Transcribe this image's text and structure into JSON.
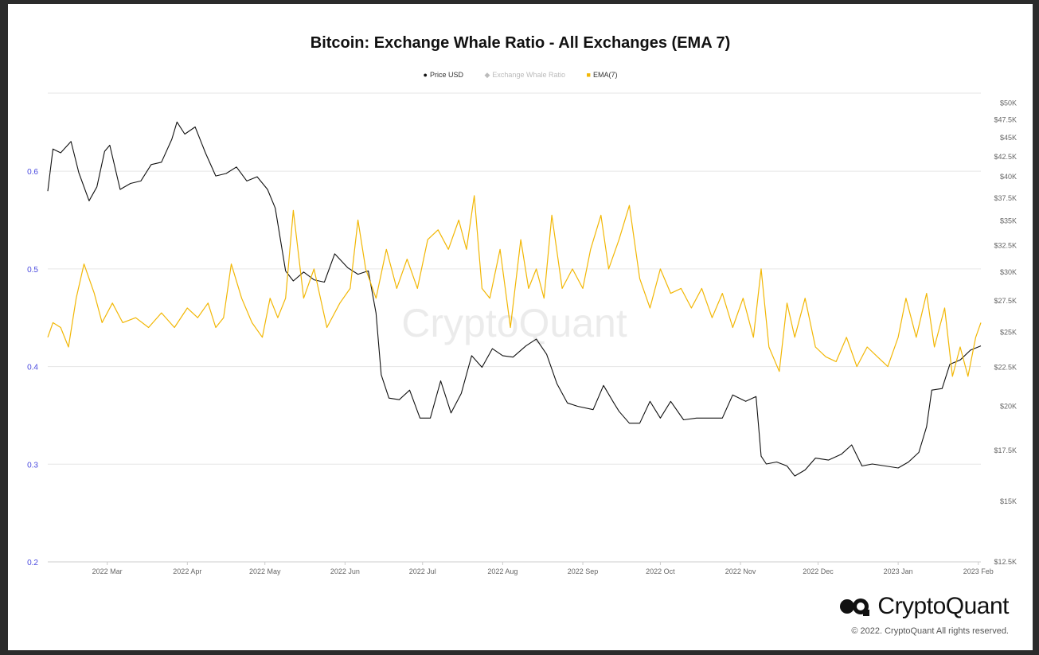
{
  "chart_data": {
    "type": "line",
    "title": "Bitcoin: Exchange Whale Ratio - All Exchanges (EMA 7)",
    "legend": [
      {
        "name": "Price USD",
        "color": "#111111"
      },
      {
        "name": "Exchange Whale Ratio",
        "color": "#bbbbbb"
      },
      {
        "name": "EMA(7)",
        "color": "#f2b705"
      }
    ],
    "x_ticks": [
      "2022 Mar",
      "2022 Apr",
      "2022 May",
      "2022 Jun",
      "2022 Jul",
      "2022 Aug",
      "2022 Sep",
      "2022 Oct",
      "2022 Nov",
      "2022 Dec",
      "2023 Jan",
      "2023 Feb"
    ],
    "x_range": [
      "2022-02-06",
      "2023-02-02"
    ],
    "y_left": {
      "range": [
        0.2,
        0.68
      ],
      "ticks": [
        "0.2",
        "0.3",
        "0.4",
        "0.5",
        "0.6"
      ],
      "tick_values": [
        0.2,
        0.3,
        0.4,
        0.5,
        0.6
      ]
    },
    "y_right": {
      "scale": "log",
      "range": [
        12500,
        51500
      ],
      "ticks": [
        "$12.5K",
        "$15K",
        "$17.5K",
        "$20K",
        "$22.5K",
        "$25K",
        "$27.5K",
        "$30K",
        "$32.5K",
        "$35K",
        "$37.5K",
        "$40K",
        "$42.5K",
        "$45K",
        "$47.5K",
        "$50K"
      ],
      "tick_values": [
        12500,
        15000,
        17500,
        20000,
        22500,
        25000,
        27500,
        30000,
        32500,
        35000,
        37500,
        40000,
        42500,
        45000,
        47500,
        50000
      ]
    },
    "series": [
      {
        "name": "Price USD",
        "axis": "right",
        "color": "#111111",
        "dates": [
          "2022-02-06",
          "2022-02-08",
          "2022-02-11",
          "2022-02-15",
          "2022-02-18",
          "2022-02-22",
          "2022-02-25",
          "2022-02-28",
          "2022-03-02",
          "2022-03-06",
          "2022-03-10",
          "2022-03-14",
          "2022-03-18",
          "2022-03-22",
          "2022-03-26",
          "2022-03-28",
          "2022-03-31",
          "2022-04-04",
          "2022-04-08",
          "2022-04-12",
          "2022-04-16",
          "2022-04-20",
          "2022-04-24",
          "2022-04-28",
          "2022-05-02",
          "2022-05-05",
          "2022-05-09",
          "2022-05-12",
          "2022-05-16",
          "2022-05-20",
          "2022-05-24",
          "2022-05-28",
          "2022-06-02",
          "2022-06-06",
          "2022-06-10",
          "2022-06-13",
          "2022-06-15",
          "2022-06-18",
          "2022-06-22",
          "2022-06-26",
          "2022-06-30",
          "2022-07-04",
          "2022-07-08",
          "2022-07-12",
          "2022-07-16",
          "2022-07-20",
          "2022-07-24",
          "2022-07-28",
          "2022-08-01",
          "2022-08-05",
          "2022-08-10",
          "2022-08-14",
          "2022-08-18",
          "2022-08-22",
          "2022-08-26",
          "2022-08-30",
          "2022-09-05",
          "2022-09-09",
          "2022-09-13",
          "2022-09-15",
          "2022-09-19",
          "2022-09-23",
          "2022-09-27",
          "2022-10-01",
          "2022-10-05",
          "2022-10-10",
          "2022-10-15",
          "2022-10-20",
          "2022-10-25",
          "2022-10-29",
          "2022-11-03",
          "2022-11-07",
          "2022-11-09",
          "2022-11-11",
          "2022-11-15",
          "2022-11-19",
          "2022-11-22",
          "2022-11-26",
          "2022-11-30",
          "2022-12-05",
          "2022-12-10",
          "2022-12-14",
          "2022-12-18",
          "2022-12-22",
          "2022-12-27",
          "2023-01-01",
          "2023-01-05",
          "2023-01-09",
          "2023-01-12",
          "2023-01-14",
          "2023-01-18",
          "2023-01-21",
          "2023-01-25",
          "2023-01-29",
          "2023-02-02"
        ],
        "values": [
          38300,
          43500,
          43000,
          44500,
          40500,
          37200,
          38800,
          43200,
          44000,
          38500,
          39200,
          39500,
          41500,
          41800,
          44800,
          47200,
          45500,
          46500,
          43000,
          40100,
          40400,
          41200,
          39500,
          40000,
          38500,
          36400,
          30100,
          29200,
          30000,
          29300,
          29100,
          31700,
          30400,
          29800,
          30100,
          26500,
          22000,
          20500,
          20400,
          21000,
          19300,
          19300,
          21600,
          19600,
          20800,
          23300,
          22500,
          23800,
          23300,
          23200,
          24000,
          24500,
          23400,
          21400,
          20200,
          20000,
          19800,
          21300,
          20200,
          19700,
          19000,
          19000,
          20300,
          19300,
          20300,
          19200,
          19300,
          19300,
          19300,
          20700,
          20300,
          20600,
          17200,
          16800,
          16900,
          16700,
          16200,
          16500,
          17100,
          17000,
          17300,
          17800,
          16700,
          16800,
          16700,
          16600,
          16900,
          17400,
          18800,
          21000,
          21100,
          22700,
          23000,
          23700,
          24000
        ]
      },
      {
        "name": "EMA(7)",
        "axis": "left",
        "color": "#f2b705",
        "dates": [
          "2022-02-06",
          "2022-02-08",
          "2022-02-11",
          "2022-02-14",
          "2022-02-17",
          "2022-02-20",
          "2022-02-24",
          "2022-02-27",
          "2022-03-03",
          "2022-03-07",
          "2022-03-12",
          "2022-03-17",
          "2022-03-22",
          "2022-03-27",
          "2022-04-01",
          "2022-04-05",
          "2022-04-09",
          "2022-04-12",
          "2022-04-15",
          "2022-04-18",
          "2022-04-22",
          "2022-04-26",
          "2022-04-30",
          "2022-05-03",
          "2022-05-06",
          "2022-05-09",
          "2022-05-12",
          "2022-05-16",
          "2022-05-20",
          "2022-05-25",
          "2022-05-30",
          "2022-06-03",
          "2022-06-06",
          "2022-06-09",
          "2022-06-13",
          "2022-06-17",
          "2022-06-21",
          "2022-06-25",
          "2022-06-29",
          "2022-07-03",
          "2022-07-07",
          "2022-07-11",
          "2022-07-15",
          "2022-07-18",
          "2022-07-21",
          "2022-07-24",
          "2022-07-27",
          "2022-07-31",
          "2022-08-04",
          "2022-08-08",
          "2022-08-11",
          "2022-08-14",
          "2022-08-17",
          "2022-08-20",
          "2022-08-24",
          "2022-08-28",
          "2022-09-01",
          "2022-09-04",
          "2022-09-08",
          "2022-09-11",
          "2022-09-15",
          "2022-09-19",
          "2022-09-23",
          "2022-09-27",
          "2022-10-01",
          "2022-10-05",
          "2022-10-09",
          "2022-10-13",
          "2022-10-17",
          "2022-10-21",
          "2022-10-25",
          "2022-10-29",
          "2022-11-02",
          "2022-11-06",
          "2022-11-09",
          "2022-11-12",
          "2022-11-16",
          "2022-11-19",
          "2022-11-22",
          "2022-11-26",
          "2022-11-30",
          "2022-12-04",
          "2022-12-08",
          "2022-12-12",
          "2022-12-16",
          "2022-12-20",
          "2022-12-24",
          "2022-12-28",
          "2023-01-01",
          "2023-01-04",
          "2023-01-08",
          "2023-01-12",
          "2023-01-15",
          "2023-01-19",
          "2023-01-22",
          "2023-01-25",
          "2023-01-28",
          "2023-01-31",
          "2023-02-02"
        ],
        "values": [
          0.43,
          0.445,
          0.44,
          0.42,
          0.47,
          0.505,
          0.475,
          0.445,
          0.465,
          0.445,
          0.45,
          0.44,
          0.455,
          0.44,
          0.46,
          0.45,
          0.465,
          0.44,
          0.45,
          0.505,
          0.47,
          0.445,
          0.43,
          0.47,
          0.45,
          0.47,
          0.56,
          0.47,
          0.5,
          0.44,
          0.465,
          0.48,
          0.55,
          0.5,
          0.47,
          0.52,
          0.48,
          0.51,
          0.48,
          0.53,
          0.54,
          0.52,
          0.55,
          0.52,
          0.575,
          0.48,
          0.47,
          0.52,
          0.44,
          0.53,
          0.48,
          0.5,
          0.47,
          0.555,
          0.48,
          0.5,
          0.48,
          0.52,
          0.555,
          0.5,
          0.53,
          0.565,
          0.49,
          0.46,
          0.5,
          0.475,
          0.48,
          0.46,
          0.48,
          0.45,
          0.475,
          0.44,
          0.47,
          0.43,
          0.5,
          0.42,
          0.395,
          0.465,
          0.43,
          0.47,
          0.42,
          0.41,
          0.405,
          0.43,
          0.4,
          0.42,
          0.41,
          0.4,
          0.43,
          0.47,
          0.43,
          0.475,
          0.42,
          0.46,
          0.39,
          0.42,
          0.39,
          0.43,
          0.445
        ]
      }
    ],
    "grid": true,
    "watermark": "CryptoQuant"
  },
  "brand": {
    "name": "CryptoQuant",
    "copyright": "© 2022. CryptoQuant All rights reserved."
  },
  "colors": {
    "price": "#111111",
    "ema": "#f2b705",
    "axis_left": "#4a4adf",
    "grid": "#e6e6e6"
  }
}
